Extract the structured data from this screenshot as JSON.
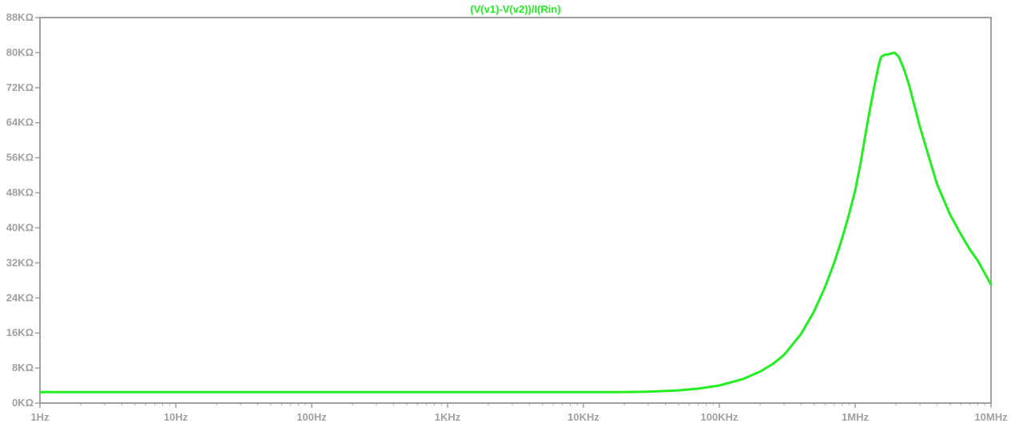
{
  "chart_data": {
    "type": "line",
    "title": "(V(v1)-V(v2))/I(Rin)",
    "xscale": "log",
    "xlim": [
      1,
      10000000
    ],
    "ylim": [
      0,
      88
    ],
    "y_unit": "KΩ",
    "grid": false,
    "x_ticks": [
      {
        "value": 1,
        "label": "1Hz"
      },
      {
        "value": 10,
        "label": "10Hz"
      },
      {
        "value": 100,
        "label": "100Hz"
      },
      {
        "value": 1000,
        "label": "1KHz"
      },
      {
        "value": 10000,
        "label": "10KHz"
      },
      {
        "value": 100000,
        "label": "100KHz"
      },
      {
        "value": 1000000,
        "label": "1MHz"
      },
      {
        "value": 10000000,
        "label": "10MHz"
      }
    ],
    "y_ticks": [
      {
        "value": 0,
        "label": "0KΩ"
      },
      {
        "value": 8,
        "label": "8KΩ"
      },
      {
        "value": 16,
        "label": "16KΩ"
      },
      {
        "value": 24,
        "label": "24KΩ"
      },
      {
        "value": 32,
        "label": "32KΩ"
      },
      {
        "value": 40,
        "label": "40KΩ"
      },
      {
        "value": 48,
        "label": "48KΩ"
      },
      {
        "value": 56,
        "label": "56KΩ"
      },
      {
        "value": 64,
        "label": "64KΩ"
      },
      {
        "value": 72,
        "label": "72KΩ"
      },
      {
        "value": 80,
        "label": "80KΩ"
      },
      {
        "value": 88,
        "label": "88KΩ"
      }
    ],
    "series": [
      {
        "color": "#22ee22",
        "x": [
          1,
          1000,
          20000,
          30000,
          50000,
          70000,
          100000,
          150000,
          200000,
          250000,
          300000,
          400000,
          500000,
          600000,
          700000,
          800000,
          900000,
          1000000,
          1100000,
          1200000,
          1300000,
          1400000,
          1500000,
          1550000,
          1650000,
          1750000,
          1850000,
          1950000,
          2100000,
          2300000,
          2500000,
          3000000,
          3500000,
          4000000,
          5000000,
          6000000,
          7000000,
          8000000,
          10000000
        ],
        "values": [
          2.5,
          2.5,
          2.5,
          2.6,
          2.9,
          3.3,
          4.0,
          5.5,
          7.2,
          9.0,
          11.0,
          15.8,
          21.0,
          26.5,
          32.0,
          37.5,
          43.0,
          48.5,
          55.0,
          62.0,
          68.0,
          73.0,
          77.5,
          79.0,
          79.5,
          79.6,
          79.8,
          80.0,
          79.0,
          76.0,
          72.5,
          63.0,
          56.0,
          50.0,
          43.0,
          38.5,
          35.0,
          32.5,
          27.0
        ]
      }
    ],
    "axis_color": "#a0a0a0",
    "label_color": "#a0a0a0"
  }
}
